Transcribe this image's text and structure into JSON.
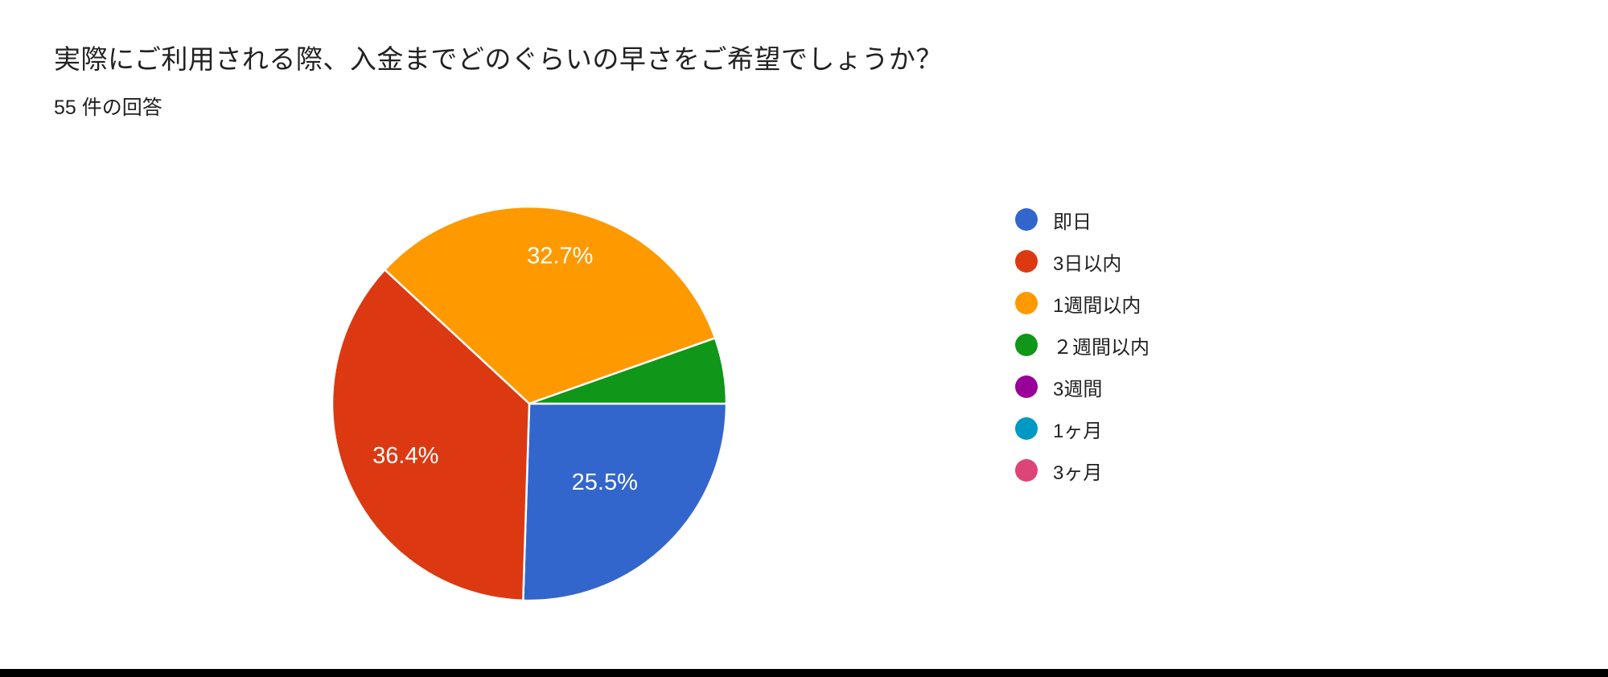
{
  "header": {
    "title": "実際にご利用される際、入金までどのぐらいの早さをご希望でしょうか？",
    "response_count": "55 件の回答"
  },
  "chart_data": {
    "type": "pie",
    "title": "実際にご利用される際、入金までどのぐらいの早さをご希望でしょうか？",
    "subtitle": "55 件の回答",
    "total_responses": 55,
    "start_angle": "3-o'clock",
    "direction": "clockwise",
    "legend_position": "right",
    "percent_label_color": "#ffffff",
    "slices": [
      {
        "label": "即日",
        "percent": 25.5,
        "percent_label": "25.5%",
        "color": "#3366CC"
      },
      {
        "label": "3日以内",
        "percent": 36.4,
        "percent_label": "36.4%",
        "color": "#DC3912"
      },
      {
        "label": "1週間以内",
        "percent": 32.7,
        "percent_label": "32.7%",
        "color": "#FF9900"
      },
      {
        "label": "２週間以内",
        "percent": 5.4,
        "percent_label": "",
        "color": "#109618"
      },
      {
        "label": "3週間",
        "percent": 0,
        "percent_label": "",
        "color": "#990099"
      },
      {
        "label": "1ヶ月",
        "percent": 0,
        "percent_label": "",
        "color": "#0099C6"
      },
      {
        "label": "3ヶ月",
        "percent": 0,
        "percent_label": "",
        "color": "#DD4477"
      }
    ]
  },
  "footer": {
    "bottom_bar_color": "#000000"
  }
}
